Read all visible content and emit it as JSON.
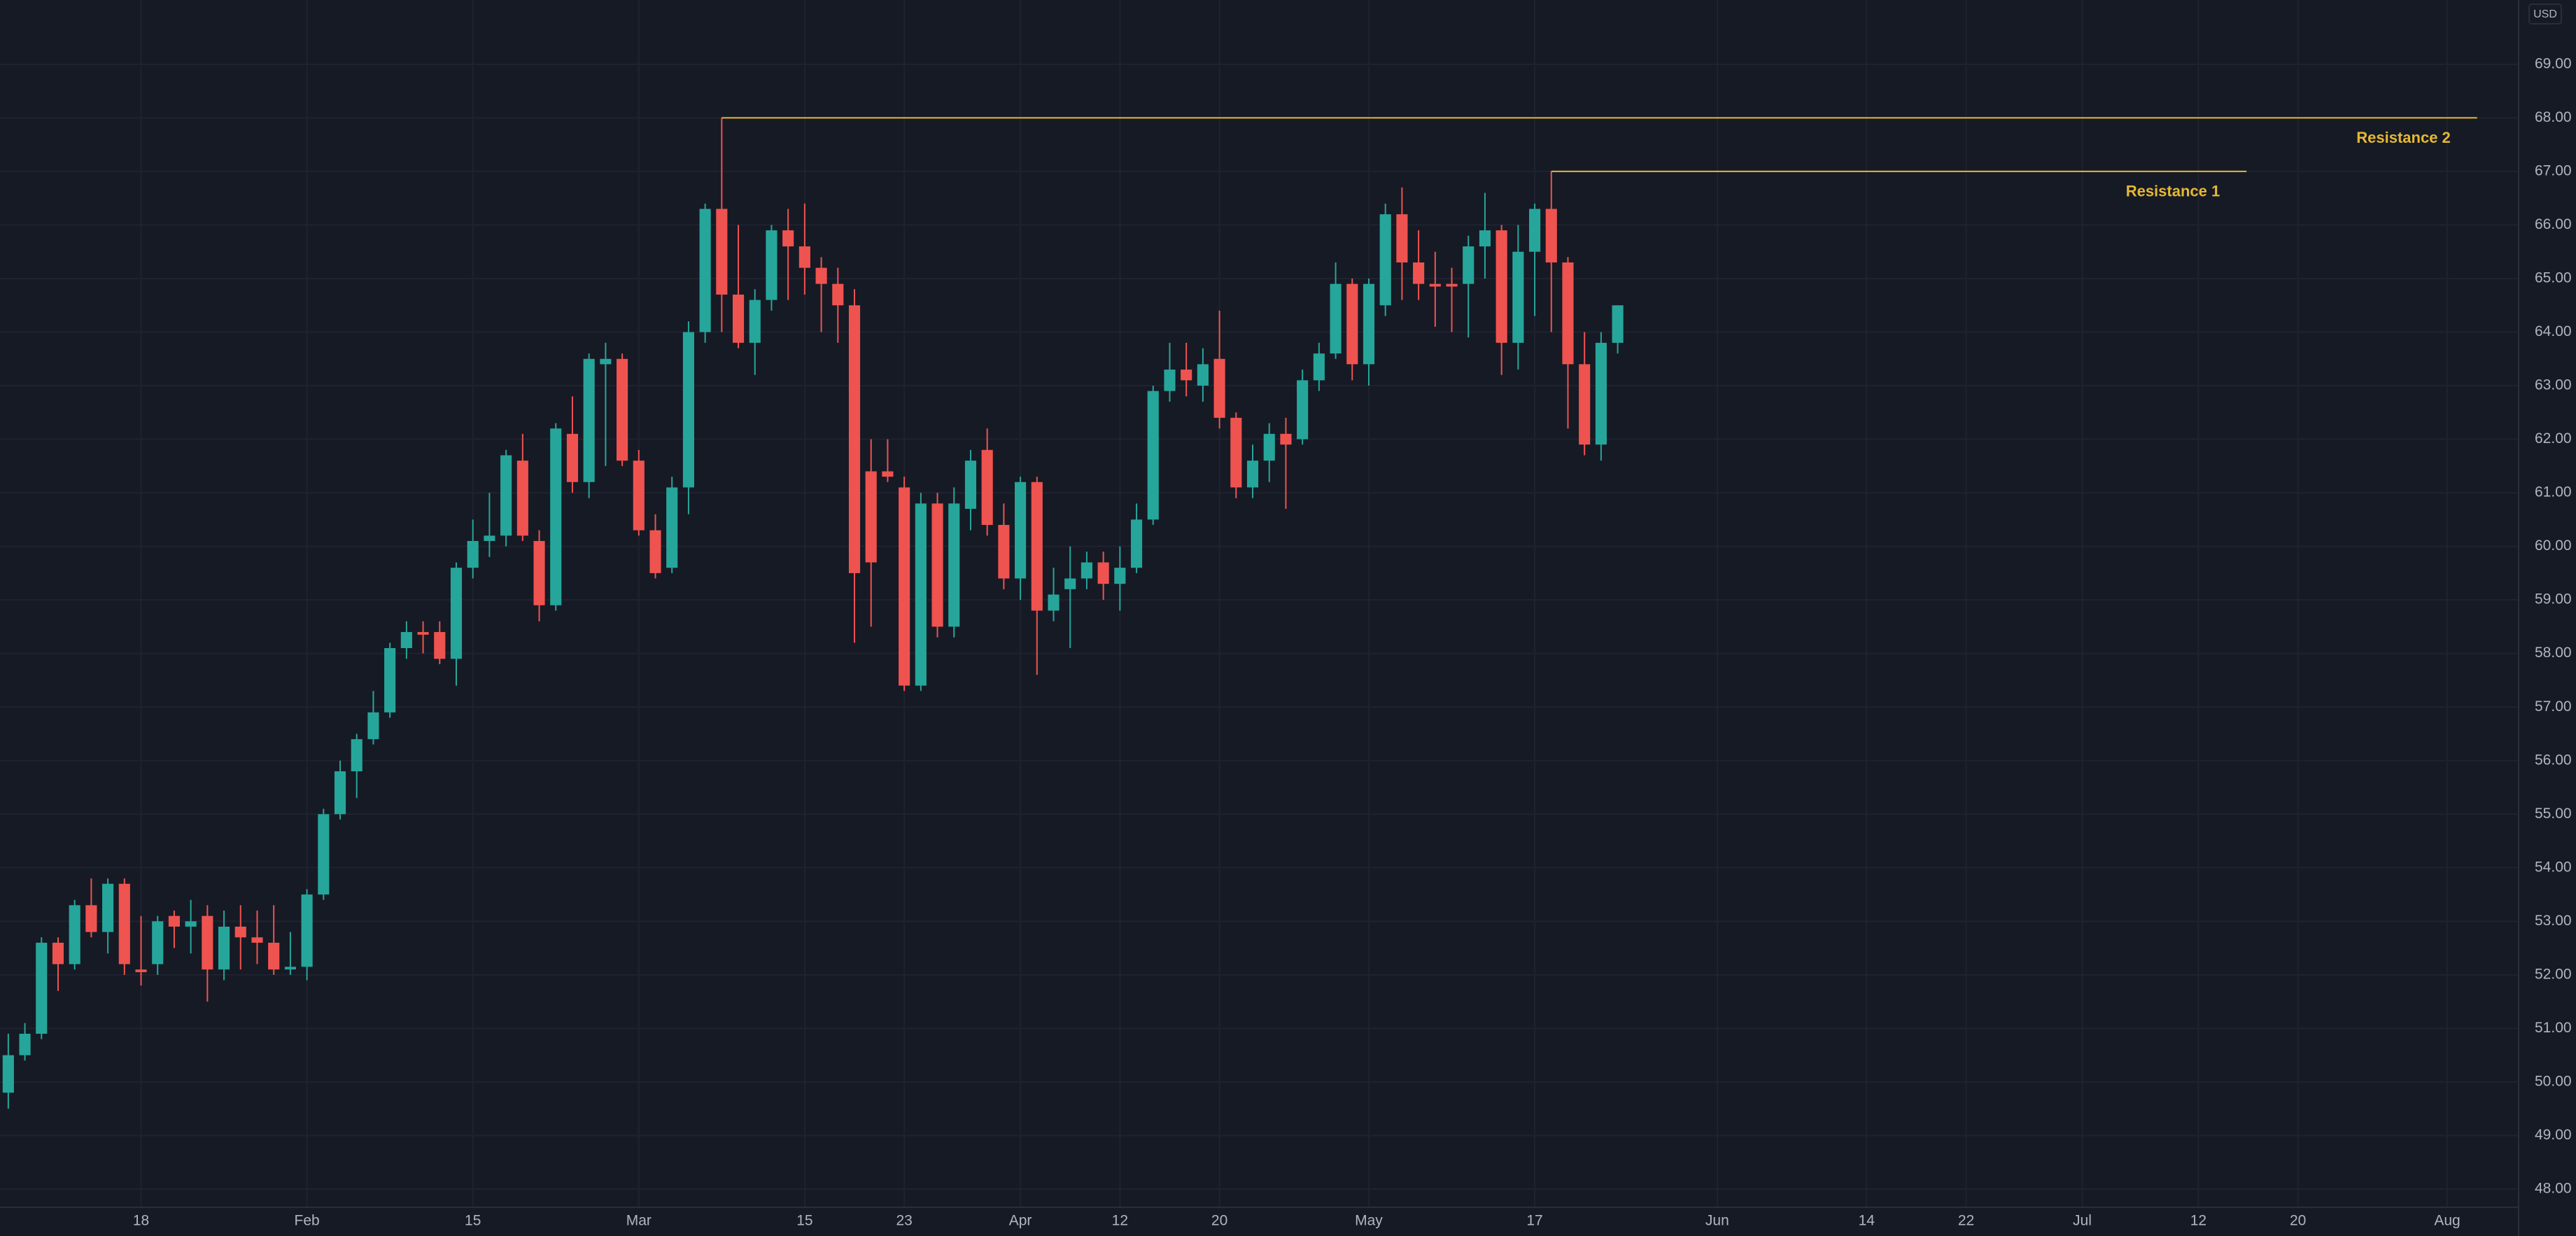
{
  "chart_data": {
    "type": "candlestick",
    "currency": "USD",
    "up_color": "#26a69a",
    "down_color": "#ef5350",
    "grid": true,
    "xlim": [
      -0.5,
      151.3
    ],
    "ylim": [
      47.66,
      70.2
    ],
    "xticks": [
      {
        "value": 8,
        "label": "18"
      },
      {
        "value": 18,
        "label": "Feb"
      },
      {
        "value": 28,
        "label": "15"
      },
      {
        "value": 38,
        "label": "Mar"
      },
      {
        "value": 48,
        "label": "15"
      },
      {
        "value": 54,
        "label": "23"
      },
      {
        "value": 61,
        "label": "Apr"
      },
      {
        "value": 67,
        "label": "12"
      },
      {
        "value": 73,
        "label": "20"
      },
      {
        "value": 82,
        "label": "May"
      },
      {
        "value": 92,
        "label": "17"
      },
      {
        "value": 103,
        "label": "Jun"
      },
      {
        "value": 112,
        "label": "14"
      },
      {
        "value": 118,
        "label": "22"
      },
      {
        "value": 125,
        "label": "Jul"
      },
      {
        "value": 132,
        "label": "12"
      },
      {
        "value": 138,
        "label": "20"
      },
      {
        "value": 147,
        "label": "Aug"
      }
    ],
    "yticks": [
      {
        "value": 48,
        "label": "48.00"
      },
      {
        "value": 49,
        "label": "49.00"
      },
      {
        "value": 50,
        "label": "50.00"
      },
      {
        "value": 51,
        "label": "51.00"
      },
      {
        "value": 52,
        "label": "52.00"
      },
      {
        "value": 53,
        "label": "53.00"
      },
      {
        "value": 54,
        "label": "54.00"
      },
      {
        "value": 55,
        "label": "55.00"
      },
      {
        "value": 56,
        "label": "56.00"
      },
      {
        "value": 57,
        "label": "57.00"
      },
      {
        "value": 58,
        "label": "58.00"
      },
      {
        "value": 59,
        "label": "59.00"
      },
      {
        "value": 60,
        "label": "60.00"
      },
      {
        "value": 61,
        "label": "61.00"
      },
      {
        "value": 62,
        "label": "62.00"
      },
      {
        "value": 63,
        "label": "63.00"
      },
      {
        "value": 64,
        "label": "64.00"
      },
      {
        "value": 65,
        "label": "65.00"
      },
      {
        "value": 66,
        "label": "66.00"
      },
      {
        "value": 67,
        "label": "67.00"
      },
      {
        "value": 68,
        "label": "68.00"
      },
      {
        "value": 69,
        "label": "69.00"
      }
    ],
    "open": [
      49.8,
      50.5,
      50.9,
      52.6,
      52.2,
      53.3,
      52.8,
      53.7,
      52.1,
      52.2,
      53.1,
      52.9,
      53.1,
      52.1,
      52.9,
      52.7,
      52.6,
      52.1,
      52.15,
      53.5,
      55.0,
      55.8,
      56.4,
      56.9,
      58.1,
      58.4,
      58.4,
      57.9,
      59.6,
      60.1,
      60.2,
      61.6,
      60.1,
      58.9,
      62.1,
      61.2,
      63.4,
      63.5,
      61.6,
      60.3,
      59.6,
      61.1,
      64.0,
      66.3,
      64.7,
      63.8,
      64.6,
      65.9,
      65.6,
      65.2,
      64.9,
      64.5,
      61.4,
      61.4,
      61.1,
      57.4,
      60.8,
      58.5,
      60.7,
      61.8,
      60.4,
      59.4,
      61.2,
      58.8,
      59.2,
      59.4,
      59.7,
      59.3,
      59.6,
      60.5,
      62.9,
      63.3,
      63.0,
      63.5,
      62.4,
      61.1,
      61.6,
      62.1,
      62.0,
      63.1,
      63.6,
      64.9,
      63.4,
      64.5,
      66.2,
      65.3,
      64.9,
      64.9,
      64.9,
      65.6,
      65.9,
      63.8,
      65.5,
      66.3,
      65.3,
      63.4,
      61.9,
      63.8
    ],
    "high": [
      50.9,
      51.1,
      52.7,
      52.7,
      53.4,
      53.8,
      53.8,
      53.8,
      53.1,
      53.1,
      53.2,
      53.4,
      53.3,
      53.2,
      53.3,
      53.2,
      53.3,
      52.8,
      53.6,
      55.1,
      56.0,
      56.5,
      57.3,
      58.2,
      58.6,
      58.6,
      58.6,
      59.7,
      60.5,
      61.0,
      61.8,
      62.1,
      60.3,
      62.3,
      62.8,
      63.6,
      63.8,
      63.6,
      61.8,
      60.6,
      61.3,
      64.2,
      66.4,
      68.0,
      66.0,
      64.8,
      66.0,
      66.3,
      66.4,
      65.4,
      65.2,
      64.8,
      62.0,
      62.0,
      61.3,
      61.0,
      61.0,
      61.1,
      61.8,
      62.2,
      60.8,
      61.3,
      61.3,
      59.6,
      60.0,
      59.9,
      59.9,
      60.0,
      60.8,
      63.0,
      63.8,
      63.8,
      63.7,
      64.4,
      62.5,
      61.9,
      62.3,
      62.4,
      63.3,
      63.8,
      65.3,
      65.0,
      65.0,
      66.4,
      66.7,
      65.9,
      65.5,
      65.2,
      65.8,
      66.6,
      66.0,
      66.0,
      66.4,
      67.0,
      65.4,
      64.0,
      64.0,
      64.5
    ],
    "low": [
      49.5,
      50.4,
      50.8,
      51.7,
      52.1,
      52.7,
      52.4,
      52.0,
      51.8,
      52.0,
      52.5,
      52.4,
      51.5,
      51.9,
      52.1,
      52.2,
      52.0,
      52.0,
      51.9,
      53.4,
      54.9,
      55.3,
      56.3,
      56.8,
      57.9,
      58.0,
      57.8,
      57.4,
      59.4,
      59.8,
      60.0,
      60.1,
      58.6,
      58.8,
      61.0,
      60.9,
      61.5,
      61.5,
      60.2,
      59.4,
      59.5,
      60.6,
      63.8,
      64.0,
      63.7,
      63.2,
      64.4,
      64.6,
      64.7,
      64.0,
      63.8,
      58.2,
      58.5,
      61.2,
      57.3,
      57.3,
      58.3,
      58.3,
      60.3,
      60.2,
      59.2,
      59.0,
      57.6,
      58.6,
      58.1,
      59.2,
      59.0,
      58.8,
      59.5,
      60.4,
      62.7,
      62.8,
      62.7,
      62.2,
      60.9,
      60.9,
      61.2,
      60.7,
      61.9,
      62.9,
      63.5,
      63.1,
      63.0,
      64.3,
      64.6,
      64.6,
      64.1,
      64.0,
      63.9,
      65.0,
      63.2,
      63.3,
      64.3,
      64.0,
      62.2,
      61.7,
      61.6,
      63.6
    ],
    "close": [
      50.5,
      50.9,
      52.6,
      52.2,
      53.3,
      52.8,
      53.7,
      52.2,
      52.05,
      53.0,
      52.9,
      53.0,
      52.1,
      52.9,
      52.7,
      52.6,
      52.1,
      52.15,
      53.5,
      55.0,
      55.8,
      56.4,
      56.9,
      58.1,
      58.4,
      58.35,
      57.9,
      59.6,
      60.1,
      60.2,
      61.7,
      60.2,
      58.9,
      62.2,
      61.2,
      63.5,
      63.5,
      61.6,
      60.3,
      59.5,
      61.1,
      64.0,
      66.3,
      64.7,
      63.8,
      64.6,
      65.9,
      65.6,
      65.2,
      64.9,
      64.5,
      59.5,
      59.7,
      61.3,
      57.4,
      60.8,
      58.5,
      60.8,
      61.6,
      60.4,
      59.4,
      61.2,
      58.8,
      59.1,
      59.4,
      59.7,
      59.3,
      59.6,
      60.5,
      62.9,
      63.3,
      63.1,
      63.4,
      62.4,
      61.1,
      61.6,
      62.1,
      61.9,
      63.1,
      63.6,
      64.9,
      63.4,
      64.9,
      66.2,
      65.3,
      64.9,
      64.85,
      64.85,
      65.6,
      65.9,
      63.8,
      65.5,
      66.3,
      65.3,
      63.4,
      61.9,
      63.8,
      64.5
    ],
    "annotations": [
      {
        "text": "Resistance 2",
        "value": 68,
        "start": 43,
        "end": 148.8,
        "color": "#e6b833"
      },
      {
        "text": "Resistance 1",
        "value": 67,
        "start": 93,
        "end": 134.9,
        "color": "#e6b833"
      }
    ]
  }
}
